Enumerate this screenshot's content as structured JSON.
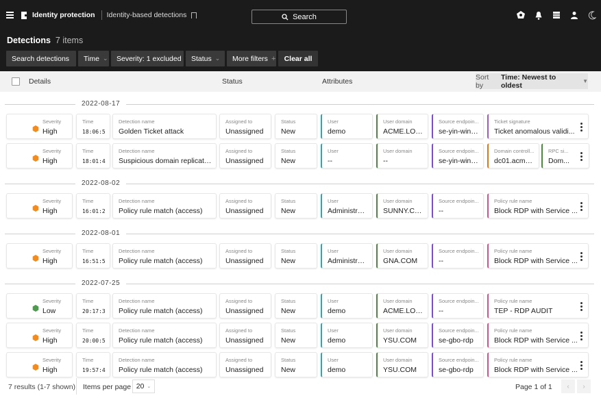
{
  "topbar": {
    "app_title": "Identity protection",
    "breadcrumb": "Identity-based detections",
    "search_label": "Search"
  },
  "header": {
    "title": "Detections",
    "count": "7 items"
  },
  "filters": {
    "search_detections": "Search detections",
    "time": "Time",
    "severity": "Severity: 1 excluded",
    "status": "Status",
    "more_filters": "More filters",
    "more_plus": "+",
    "clear_all": "Clear all"
  },
  "columns": {
    "details": "Details",
    "status": "Status",
    "attributes": "Attributes",
    "sort_prefix": "Sort by",
    "sort_value": "Time: Newest to oldest"
  },
  "field_labels": {
    "severity": "Severity",
    "time": "Time",
    "detection_name": "Detection name",
    "assigned_to": "Assigned to",
    "status": "Status"
  },
  "colors": {
    "high": "#f28c1e",
    "low": "#4e9a4e",
    "user": "#2aa7b3",
    "user_domain": "#4a8a3a",
    "source_endpoint": "#7a4fc9",
    "ticket_signature": "#9b5fb5",
    "domain_controller": "#d17a2e",
    "rpc": "#4a8a3a",
    "policy_rule": "#c25a8a"
  },
  "groups": [
    {
      "date": "2022-08-17",
      "rows": [
        {
          "severity": "High",
          "sev_color": "#f28c1e",
          "time": "18:06:5",
          "name": "Golden Ticket attack",
          "assigned": "Unassigned",
          "status": "New",
          "attrs": [
            {
              "label": "User",
              "value": "demo",
              "color": "#2aa7b3"
            },
            {
              "label": "User domain",
              "value": "ACME.LOC...",
              "color": "#4a8a3a"
            },
            {
              "label": "Source endpoin...",
              "value": "se-yin-win1...",
              "color": "#7a4fc9"
            },
            {
              "label": "Ticket signature",
              "value": "Ticket anomalous validi...",
              "color": "#9b5fb5",
              "wide": true
            }
          ]
        },
        {
          "severity": "High",
          "sev_color": "#f28c1e",
          "time": "18:01:4",
          "name": "Suspicious domain replication",
          "assigned": "Unassigned",
          "status": "New",
          "attrs": [
            {
              "label": "User",
              "value": "--",
              "color": "#2aa7b3"
            },
            {
              "label": "User domain",
              "value": "--",
              "color": "#4a8a3a"
            },
            {
              "label": "Source endpoin...",
              "value": "se-yin-win1...",
              "color": "#7a4fc9"
            },
            {
              "label": "Domain controll...",
              "value": "dc01.acme.l...",
              "color": "#d17a2e"
            },
            {
              "label": "RPC si...",
              "value": "Dom...",
              "color": "#4a8a3a"
            }
          ]
        }
      ]
    },
    {
      "date": "2022-08-02",
      "rows": [
        {
          "severity": "High",
          "sev_color": "#f28c1e",
          "time": "16:01:2",
          "name": "Policy rule match (access)",
          "assigned": "Unassigned",
          "status": "New",
          "attrs": [
            {
              "label": "User",
              "value": "Administrat...",
              "color": "#2aa7b3"
            },
            {
              "label": "User domain",
              "value": "SUNNY.COM",
              "color": "#4a8a3a"
            },
            {
              "label": "Source endpoin...",
              "value": "--",
              "color": "#7a4fc9"
            },
            {
              "label": "Policy rule name",
              "value": "Block RDP with Service ...",
              "color": "#c25a8a",
              "wide": true
            }
          ]
        }
      ]
    },
    {
      "date": "2022-08-01",
      "rows": [
        {
          "severity": "High",
          "sev_color": "#f28c1e",
          "time": "16:51:5",
          "name": "Policy rule match (access)",
          "assigned": "Unassigned",
          "status": "New",
          "attrs": [
            {
              "label": "User",
              "value": "Administrat...",
              "color": "#2aa7b3"
            },
            {
              "label": "User domain",
              "value": "GNA.COM",
              "color": "#4a8a3a"
            },
            {
              "label": "Source endpoin...",
              "value": "--",
              "color": "#7a4fc9"
            },
            {
              "label": "Policy rule name",
              "value": "Block RDP with Service ...",
              "color": "#c25a8a",
              "wide": true
            }
          ]
        }
      ]
    },
    {
      "date": "2022-07-25",
      "rows": [
        {
          "severity": "Low",
          "sev_color": "#4e9a4e",
          "time": "20:17:3",
          "name": "Policy rule match (access)",
          "assigned": "Unassigned",
          "status": "New",
          "attrs": [
            {
              "label": "User",
              "value": "demo",
              "color": "#2aa7b3"
            },
            {
              "label": "User domain",
              "value": "ACME.LOC...",
              "color": "#4a8a3a"
            },
            {
              "label": "Source endpoin...",
              "value": "--",
              "color": "#7a4fc9"
            },
            {
              "label": "Policy rule name",
              "value": "TEP - RDP AUDIT",
              "color": "#c25a8a",
              "wide": true
            }
          ]
        },
        {
          "severity": "High",
          "sev_color": "#f28c1e",
          "time": "20:00:5",
          "name": "Policy rule match (access)",
          "assigned": "Unassigned",
          "status": "New",
          "attrs": [
            {
              "label": "User",
              "value": "demo",
              "color": "#2aa7b3"
            },
            {
              "label": "User domain",
              "value": "YSU.COM",
              "color": "#4a8a3a"
            },
            {
              "label": "Source endpoin...",
              "value": "se-gbo-rdp",
              "color": "#7a4fc9"
            },
            {
              "label": "Policy rule name",
              "value": "Block RDP with Service ...",
              "color": "#c25a8a",
              "wide": true
            }
          ]
        },
        {
          "severity": "High",
          "sev_color": "#f28c1e",
          "time": "19:57:4",
          "name": "Policy rule match (access)",
          "assigned": "Unassigned",
          "status": "New",
          "attrs": [
            {
              "label": "User",
              "value": "demo",
              "color": "#2aa7b3"
            },
            {
              "label": "User domain",
              "value": "YSU.COM",
              "color": "#4a8a3a"
            },
            {
              "label": "Source endpoin...",
              "value": "se-gbo-rdp",
              "color": "#7a4fc9"
            },
            {
              "label": "Policy rule name",
              "value": "Block RDP with Service ...",
              "color": "#c25a8a",
              "wide": true
            }
          ]
        }
      ]
    }
  ],
  "footer": {
    "results": "7 results (1-7 shown)",
    "items_per_page_label": "Items per page",
    "items_per_page_value": "20",
    "page": "Page 1 of 1"
  }
}
